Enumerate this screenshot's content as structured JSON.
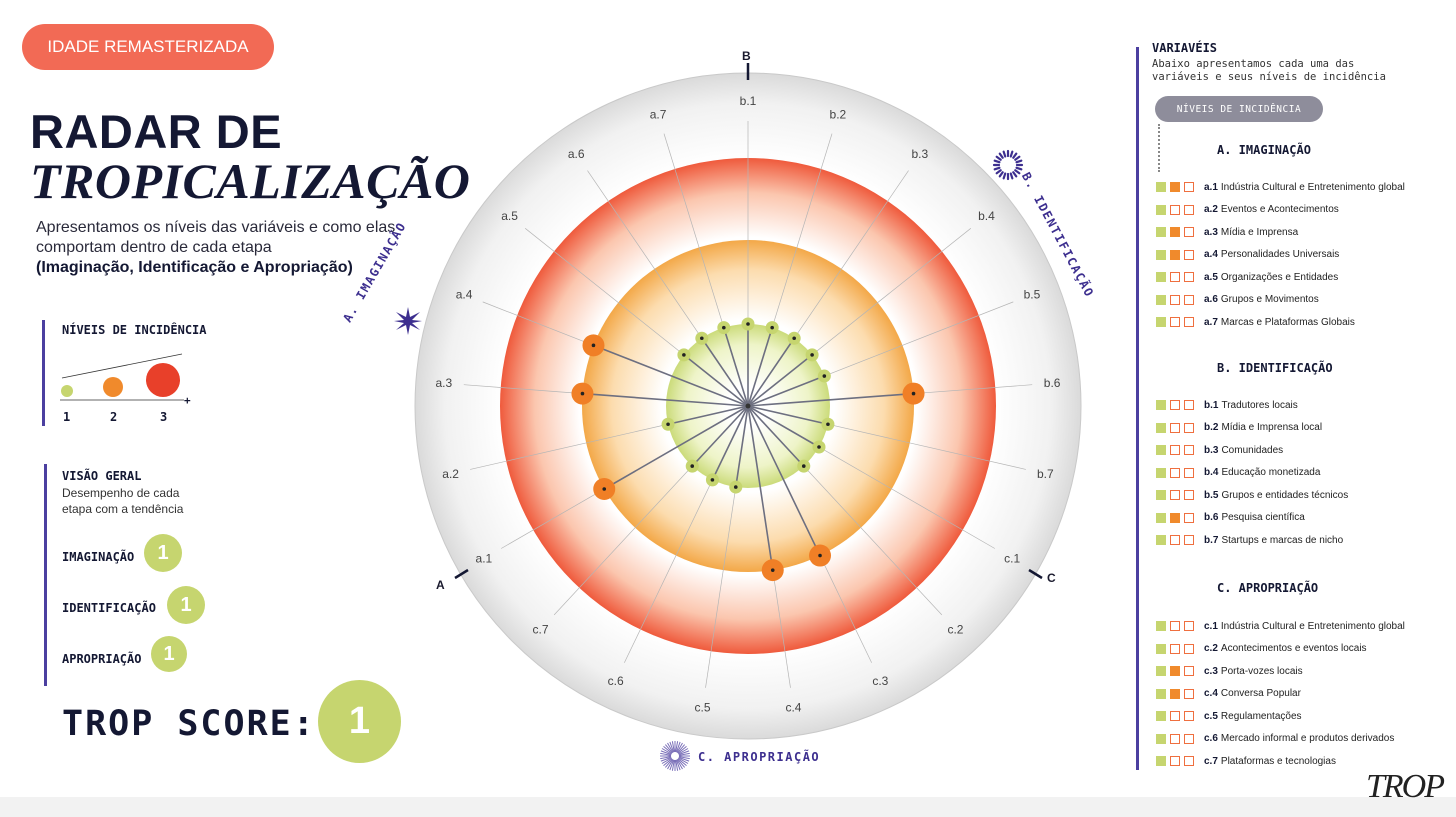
{
  "badge": "IDADE REMASTERIZADA",
  "title_line1": "RADAR DE",
  "title_line2": "TROPICALIZAÇÃO",
  "intro_text": "Apresentamos os níveis das variáveis e como elas comportam dentro de cada etapa",
  "intro_bold": "(Imaginação, Identificação e Apropriação)",
  "legend": {
    "title": "NÍVEIS DE INCIDÊNCIA",
    "levels": [
      "1",
      "2",
      "3"
    ],
    "plus": "+"
  },
  "overview": {
    "title": "VISÃO GERAL",
    "desc_line1": "Desempenho de cada",
    "desc_line2": "etapa com a tendência",
    "stages": [
      {
        "label": "IMAGINAÇÃO",
        "score": "1"
      },
      {
        "label": "IDENTIFICAÇÃO",
        "score": "1"
      },
      {
        "label": "APROPRIAÇÃO",
        "score": "1"
      }
    ]
  },
  "trop_score": {
    "label": "TROP SCORE:",
    "value": "1"
  },
  "radar": {
    "axis_letters": {
      "a": "A",
      "b": "B",
      "c": "C"
    },
    "stage_titles": {
      "imaginacao": "A. IMAGINAÇÃO",
      "identificacao": "B. IDENTIFICAÇÃO",
      "apropriacao": "C. APROPRIAÇÃO"
    },
    "spokes": [
      {
        "code": "a.1",
        "level": 2
      },
      {
        "code": "a.2",
        "level": 1
      },
      {
        "code": "a.3",
        "level": 2
      },
      {
        "code": "a.4",
        "level": 2
      },
      {
        "code": "a.5",
        "level": 1
      },
      {
        "code": "a.6",
        "level": 1
      },
      {
        "code": "a.7",
        "level": 1
      },
      {
        "code": "b.1",
        "level": 1
      },
      {
        "code": "b.2",
        "level": 1
      },
      {
        "code": "b.3",
        "level": 1
      },
      {
        "code": "b.4",
        "level": 1
      },
      {
        "code": "b.5",
        "level": 1
      },
      {
        "code": "b.6",
        "level": 2
      },
      {
        "code": "b.7",
        "level": 1
      },
      {
        "code": "c.1",
        "level": 1
      },
      {
        "code": "c.2",
        "level": 1
      },
      {
        "code": "c.3",
        "level": 2
      },
      {
        "code": "c.4",
        "level": 2
      },
      {
        "code": "c.5",
        "level": 1
      },
      {
        "code": "c.6",
        "level": 1
      },
      {
        "code": "c.7",
        "level": 1
      }
    ],
    "colors": {
      "level1": "#c6d56f",
      "level2": "#f07f26",
      "level3": "#e8402a"
    }
  },
  "variables": {
    "title": "VARIAVÉIS",
    "desc_line1": "Abaixo apresentamos cada uma das",
    "desc_line2": "variáveis e seus níveis de incidência",
    "pill": "NÍVEIS DE INCIDÊNCIA",
    "categories": [
      {
        "heading": "A. IMAGINAÇÃO",
        "items": [
          {
            "code": "a.1",
            "label": "Indústria Cultural e Entretenimento global",
            "level": 2
          },
          {
            "code": "a.2",
            "label": "Eventos e Acontecimentos",
            "level": 1
          },
          {
            "code": "a.3",
            "label": "Mídia e Imprensa",
            "level": 2
          },
          {
            "code": "a.4",
            "label": "Personalidades Universais",
            "level": 2
          },
          {
            "code": "a.5",
            "label": "Organizações e Entidades",
            "level": 1
          },
          {
            "code": "a.6",
            "label": "Grupos e Movimentos",
            "level": 1
          },
          {
            "code": "a.7",
            "label": "Marcas e Plataformas Globais",
            "level": 1
          }
        ]
      },
      {
        "heading": "B. IDENTIFICAÇÃO",
        "items": [
          {
            "code": "b.1",
            "label": "Tradutores locais",
            "level": 1
          },
          {
            "code": "b.2",
            "label": "Mídia e Imprensa local",
            "level": 1
          },
          {
            "code": "b.3",
            "label": "Comunidades",
            "level": 1
          },
          {
            "code": "b.4",
            "label": "Educação monetizada",
            "level": 1
          },
          {
            "code": "b.5",
            "label": "Grupos e entidades técnicos",
            "level": 1
          },
          {
            "code": "b.6",
            "label": "Pesquisa científica",
            "level": 2
          },
          {
            "code": "b.7",
            "label": "Startups e marcas de nicho",
            "level": 1
          }
        ]
      },
      {
        "heading": "C. APROPRIAÇÃO",
        "items": [
          {
            "code": "c.1",
            "label": "Indústria Cultural e Entretenimento global",
            "level": 1
          },
          {
            "code": "c.2",
            "label": "Acontecimentos e eventos locais",
            "level": 1
          },
          {
            "code": "c.3",
            "label": "Porta-vozes locais",
            "level": 2
          },
          {
            "code": "c.4",
            "label": "Conversa Popular",
            "level": 2
          },
          {
            "code": "c.5",
            "label": "Regulamentações",
            "level": 1
          },
          {
            "code": "c.6",
            "label": "Mercado informal e produtos derivados",
            "level": 1
          },
          {
            "code": "c.7",
            "label": "Plataformas e tecnologias",
            "level": 1
          }
        ]
      }
    ]
  },
  "signature": "TROP"
}
